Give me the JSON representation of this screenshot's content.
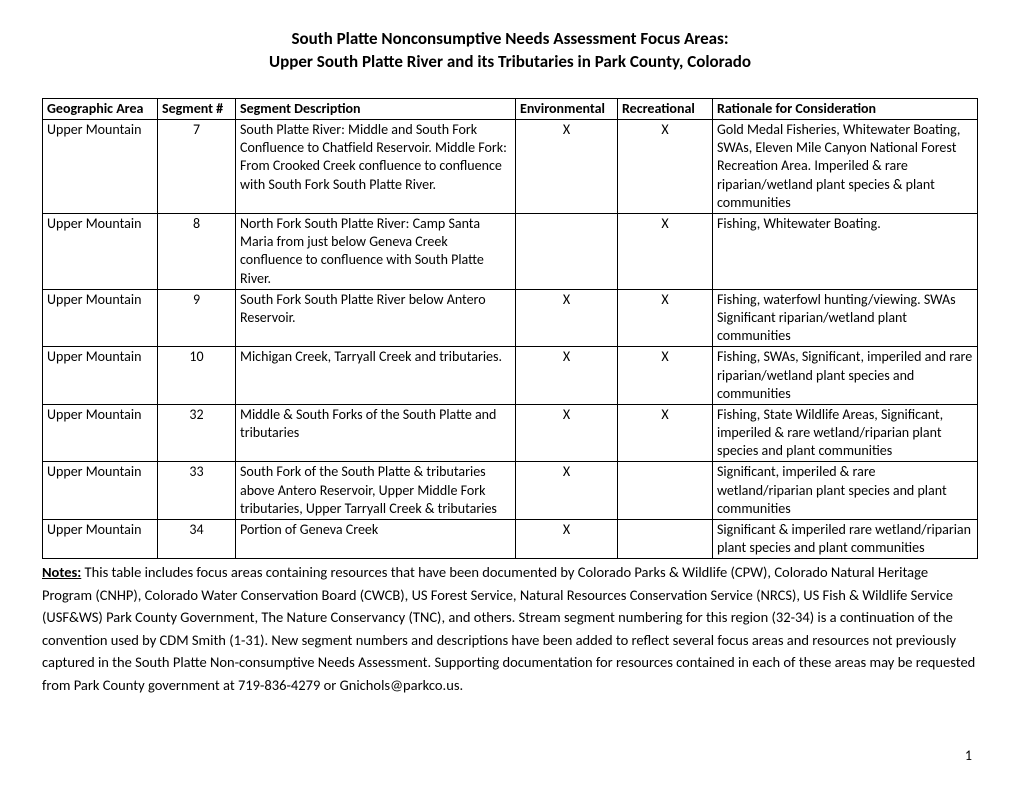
{
  "title": {
    "line1": "South Platte Nonconsumptive Needs Assessment Focus Areas:",
    "line2": "Upper South Platte River and its Tributaries in Park County, Colorado"
  },
  "table": {
    "columns": [
      "Geographic Area",
      "Segment #",
      "Segment Description",
      "Environmental",
      "Recreational",
      "Rationale for Consideration"
    ],
    "rows": [
      {
        "area": "Upper Mountain",
        "segment": "7",
        "description": "South Platte River: Middle and South Fork Confluence to Chatfield Reservoir. Middle Fork: From Crooked Creek confluence to confluence with South Fork South Platte River.",
        "environmental": "X",
        "recreational": "X",
        "rationale": "Gold Medal Fisheries, Whitewater Boating, SWAs, Eleven Mile Canyon National Forest Recreation Area. Imperiled & rare riparian/wetland plant species & plant communities"
      },
      {
        "area": "Upper Mountain",
        "segment": "8",
        "description": "North Fork South Platte River: Camp Santa Maria from just below Geneva Creek confluence to confluence with South Platte River.",
        "environmental": "",
        "recreational": "X",
        "rationale": "Fishing, Whitewater Boating."
      },
      {
        "area": "Upper Mountain",
        "segment": "9",
        "description": "South Fork South Platte River below Antero Reservoir.",
        "environmental": "X",
        "recreational": "X",
        "rationale": "Fishing, waterfowl hunting/viewing. SWAs  Significant riparian/wetland plant communities"
      },
      {
        "area": "Upper Mountain",
        "segment": "10",
        "description": "Michigan Creek, Tarryall Creek and tributaries.",
        "environmental": "X",
        "recreational": "X",
        "rationale": "Fishing,  SWAs, Significant, imperiled and rare riparian/wetland plant species and communities"
      },
      {
        "area": "Upper Mountain",
        "segment": "32",
        "description": "Middle & South Forks of the South Platte and tributaries",
        "environmental": "X",
        "recreational": "X",
        "rationale": "Fishing,  State Wildlife Areas, Significant, imperiled & rare wetland/riparian plant species and plant communities"
      },
      {
        "area": "Upper Mountain",
        "segment": "33",
        "description": "South Fork of the South Platte & tributaries above Antero Reservoir, Upper Middle Fork tributaries, Upper Tarryall Creek & tributaries",
        "environmental": "X",
        "recreational": "",
        "rationale": "Significant, imperiled & rare wetland/riparian plant species and plant communities"
      },
      {
        "area": "Upper Mountain",
        "segment": "34",
        "description": "Portion of Geneva Creek",
        "environmental": "X",
        "recreational": "",
        "rationale": "Significant & imperiled rare wetland/riparian plant species and plant communities"
      }
    ]
  },
  "notes": {
    "label": "Notes:",
    "body": "  This table includes focus areas containing resources that have been documented by Colorado Parks & Wildlife (CPW), Colorado Natural Heritage Program (CNHP), Colorado Water Conservation Board (CWCB), US Forest Service, Natural Resources Conservation Service (NRCS), US Fish & Wildlife Service (USF&WS) Park County Government, The Nature Conservancy (TNC), and others.  Stream segment numbering for this region (32-34) is a continuation of the convention used by CDM Smith (1-31).  New segment numbers and descriptions have been added to reflect several focus areas and resources not previously captured in the South Platte Non-consumptive Needs Assessment.  Supporting documentation for resources contained in each of these areas may be requested from Park County government at 719-836-4279 or Gnichols@parkco.us."
  },
  "pageNumber": "1"
}
